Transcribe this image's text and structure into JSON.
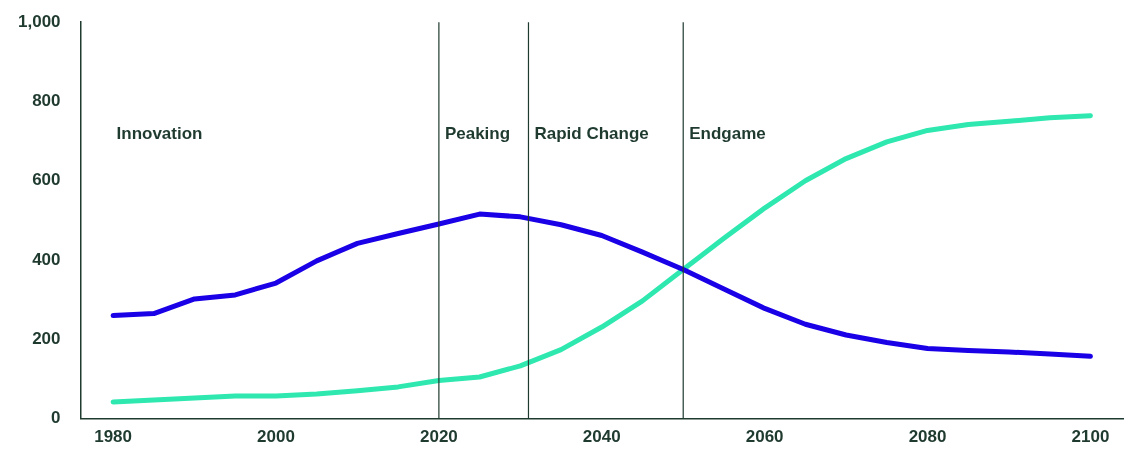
{
  "chart_data": {
    "type": "line",
    "x": [
      1980,
      1985,
      1990,
      1995,
      2000,
      2005,
      2010,
      2015,
      2020,
      2025,
      2030,
      2035,
      2040,
      2045,
      2050,
      2055,
      2060,
      2065,
      2070,
      2075,
      2080,
      2085,
      2090,
      2095,
      2100
    ],
    "series": [
      {
        "color": "#1a00e6",
        "values": [
          260,
          265,
          302,
          312,
          342,
          398,
          442,
          467,
          491,
          516,
          509,
          489,
          462,
          420,
          376,
          327,
          278,
          238,
          211,
          192,
          177,
          172,
          168,
          163,
          157
        ]
      },
      {
        "color": "#2ee8b0",
        "values": [
          42,
          47,
          52,
          57,
          57,
          62,
          70,
          80,
          96,
          105,
          133,
          174,
          231,
          297,
          376,
          455,
          531,
          600,
          656,
          698,
          727,
          742,
          750,
          759,
          764
        ]
      }
    ],
    "xlim": [
      1976,
      2104
    ],
    "xticks": [
      1980,
      2000,
      2020,
      2040,
      2060,
      2080,
      2100
    ],
    "ylim": [
      0,
      1000
    ],
    "yticks": [
      0,
      200,
      400,
      600,
      800,
      {
        "value": 1000,
        "label": "1,000"
      }
    ],
    "ref_lines": [
      {
        "axis": "x",
        "value": 2020,
        "color": "#1f3a2f",
        "label": "Peaking"
      },
      {
        "axis": "x",
        "value": 2031,
        "color": "#1f3a2f",
        "label": "Rapid Change"
      },
      {
        "axis": "x",
        "value": 2050,
        "color": "#1f3a2f",
        "label": "Endgame"
      }
    ],
    "annotations": [
      "Innovation"
    ],
    "grid": false,
    "legend": false,
    "marker": "none",
    "line_style": "solid"
  }
}
